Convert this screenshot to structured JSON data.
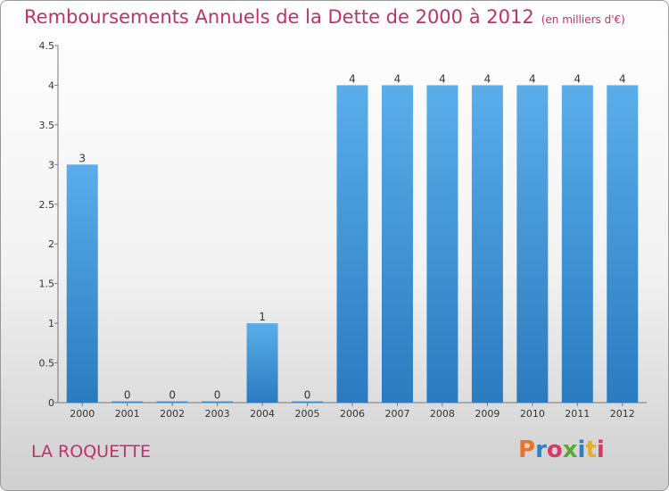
{
  "header": {
    "title": "Remboursements Annuels de la Dette de 2000 à 2012",
    "unit": "(en milliers d'€)"
  },
  "footer": {
    "place": "LA ROQUETTE",
    "logo": {
      "text": "Proxiti",
      "colors": [
        "#e8732a",
        "#2f7fc7",
        "#d43a6a",
        "#5aa83a",
        "#2f7fc7",
        "#e8b020",
        "#d43a6a"
      ]
    }
  },
  "chart_data": {
    "type": "bar",
    "categories": [
      "2000",
      "2001",
      "2002",
      "2003",
      "2004",
      "2005",
      "2006",
      "2007",
      "2008",
      "2009",
      "2010",
      "2011",
      "2012"
    ],
    "values": [
      3,
      0,
      0,
      0,
      1,
      0,
      4,
      4,
      4,
      4,
      4,
      4,
      4
    ],
    "ylim": [
      0,
      4.5
    ],
    "yticks": [
      "0",
      "0.5",
      "1",
      "1.5",
      "2",
      "2.5",
      "3",
      "3.5",
      "4",
      "4.5"
    ],
    "grid": false,
    "bar_color": "#4a9fdf"
  }
}
